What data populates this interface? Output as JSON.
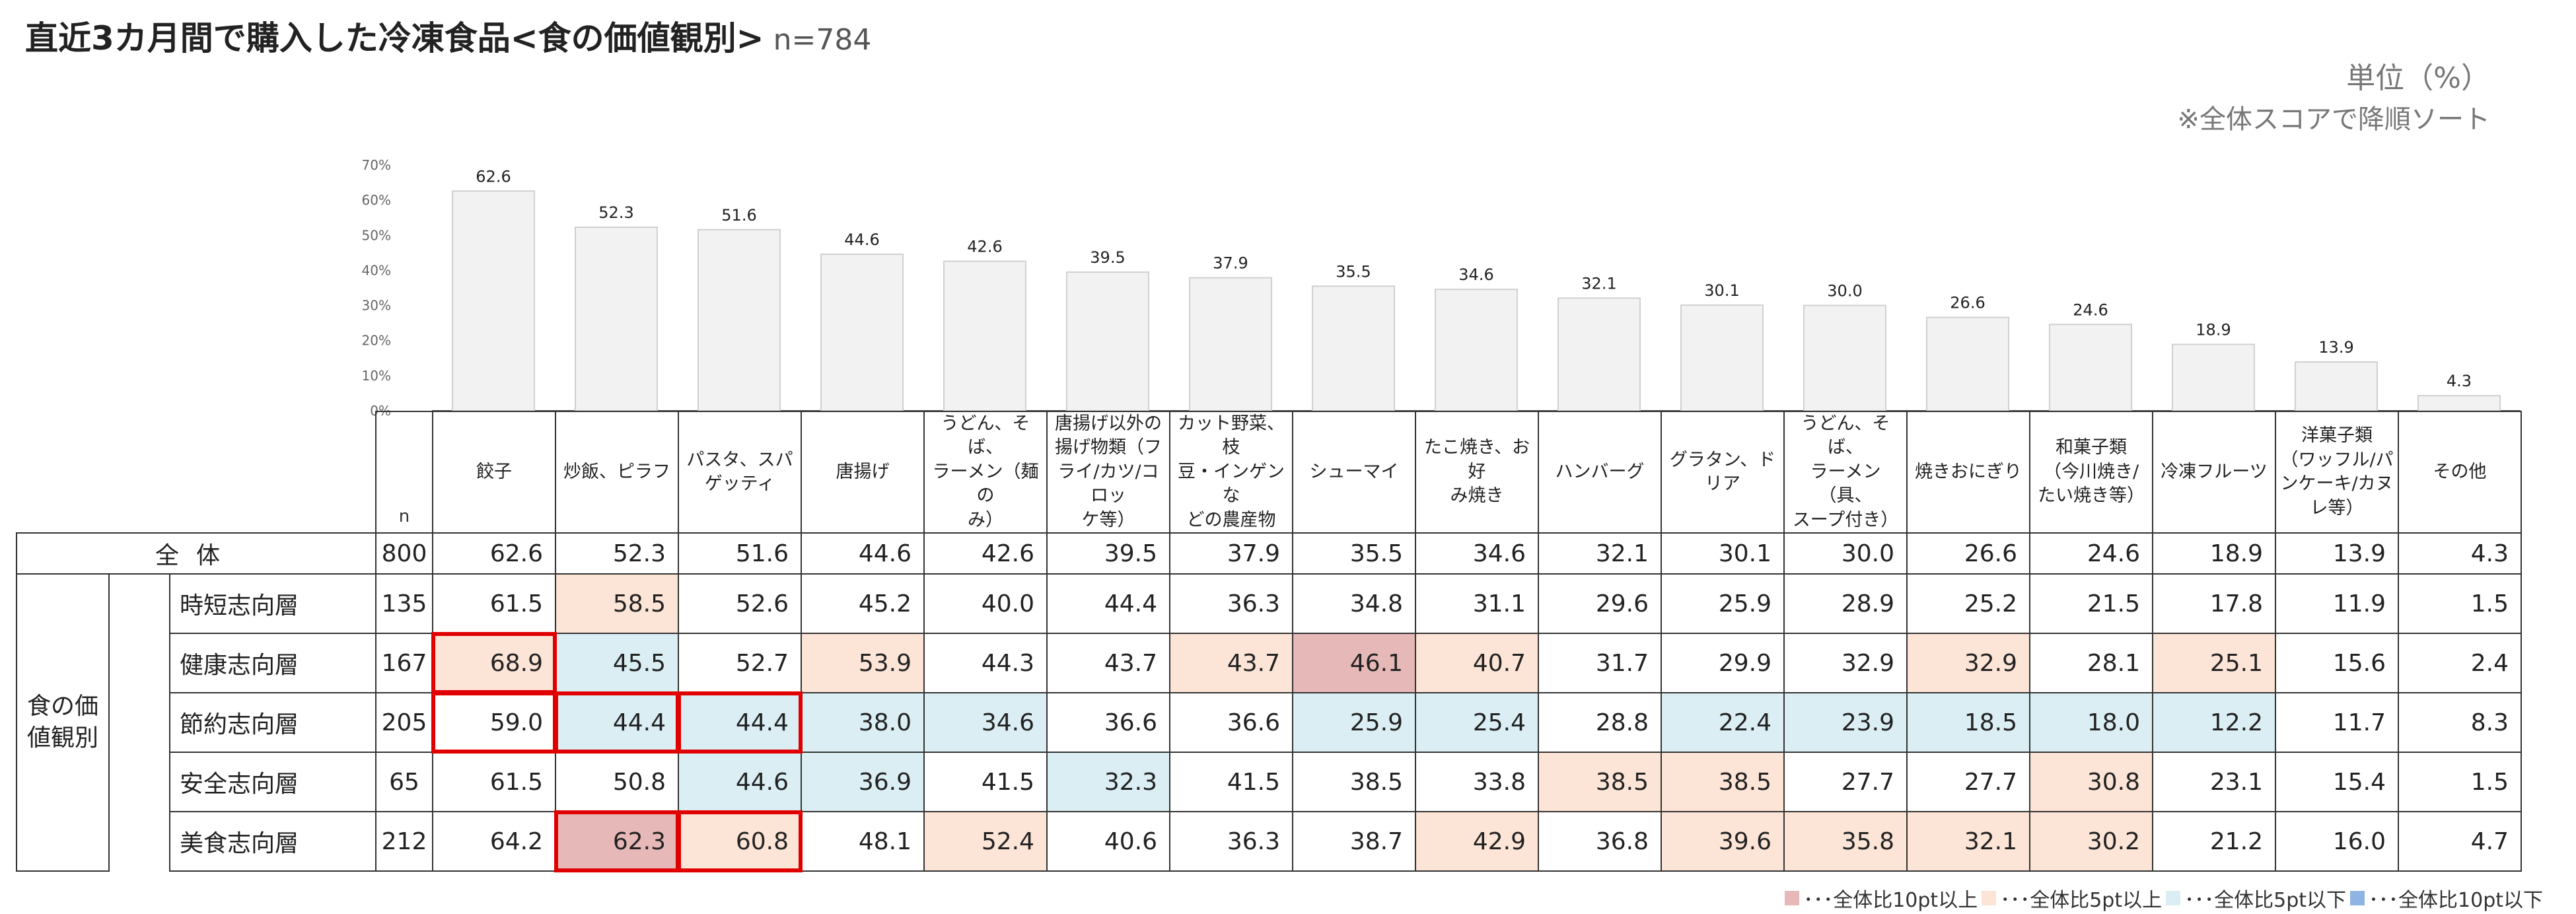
{
  "title": "直近3カ月間で購入した冷凍食品<食の価値観別>",
  "sample": "n=784",
  "unit": "単位（%）",
  "sort_note": "※全体スコアで降順ソート",
  "n_caption": "n",
  "total_label": "全体",
  "group_label": "食の価値観別",
  "categories": [
    "餃子",
    "炒飯、ピラフ",
    "パスタ、スパゲッティ",
    "唐揚げ",
    "うどん、そば、ラーメン（麺のみ）",
    "唐揚げ以外の揚げ物類（フライ/カツ/コロッケ等）",
    "カット野菜、枝豆・インゲンなどの農産物",
    "シューマイ",
    "たこ焼き、お好み焼き",
    "ハンバーグ",
    "グラタン、ドリア",
    "うどん、そば、ラーメン（具、スープ付き）",
    "焼きおにぎり",
    "和菓子類（今川焼き/たい焼き等）",
    "冷凍フルーツ",
    "洋菓子類（ワッフル/パンケーキ/カヌレ等）",
    "その他"
  ],
  "header_lines": [
    [
      "餃子"
    ],
    [
      "炒飯、ピラフ"
    ],
    [
      "パスタ、スパ",
      "ゲッティ"
    ],
    [
      "唐揚げ"
    ],
    [
      "うどん、そば、",
      "ラーメン（麺の",
      "み）"
    ],
    [
      "唐揚げ以外の",
      "揚げ物類（フ",
      "ライ/カツ/コロッ",
      "ケ等）"
    ],
    [
      "カット野菜、枝",
      "豆・インゲンな",
      "どの農産物"
    ],
    [
      "シューマイ"
    ],
    [
      "たこ焼き、お好",
      "み焼き"
    ],
    [
      "ハンバーグ"
    ],
    [
      "グラタン、ドリア"
    ],
    [
      "うどん、そば、",
      "ラーメン（具、",
      "スープ付き）"
    ],
    [
      "焼きおにぎり"
    ],
    [
      "和菓子類",
      "（今川焼き/",
      "たい焼き等）"
    ],
    [
      "冷凍フルーツ"
    ],
    [
      "洋菓子類",
      "（ワッフル/パ",
      "ンケーキ/カヌ",
      "レ等）"
    ],
    [
      "その他"
    ]
  ],
  "total": {
    "n": 800,
    "values": [
      "62.6",
      "52.3",
      "51.6",
      "44.6",
      "42.6",
      "39.5",
      "37.9",
      "35.5",
      "34.6",
      "32.1",
      "30.1",
      "30.0",
      "26.6",
      "24.6",
      "18.9",
      "13.9",
      "4.3"
    ]
  },
  "segments": [
    {
      "label": "時短志向層",
      "n": 135,
      "values": [
        "61.5",
        "58.5",
        "52.6",
        "45.2",
        "40.0",
        "44.4",
        "36.3",
        "34.8",
        "31.1",
        "29.6",
        "25.9",
        "28.9",
        "25.2",
        "21.5",
        "17.8",
        "11.9",
        "1.5"
      ],
      "colors": [
        "",
        "5u",
        "",
        "",
        "",
        "",
        "",
        "",
        "",
        "",
        "",
        "",
        "",
        "",
        "",
        "",
        ""
      ],
      "highlight": []
    },
    {
      "label": "健康志向層",
      "n": 167,
      "values": [
        "68.9",
        "45.5",
        "52.7",
        "53.9",
        "44.3",
        "43.7",
        "43.7",
        "46.1",
        "40.7",
        "31.7",
        "29.9",
        "32.9",
        "32.9",
        "28.1",
        "25.1",
        "15.6",
        "2.4"
      ],
      "colors": [
        "5u",
        "5d",
        "",
        "5u",
        "",
        "",
        "5u",
        "10u",
        "5u",
        "",
        "",
        "",
        "5u",
        "",
        "5u",
        "",
        ""
      ],
      "highlight": [
        0
      ]
    },
    {
      "label": "節約志向層",
      "n": 205,
      "values": [
        "59.0",
        "44.4",
        "44.4",
        "38.0",
        "34.6",
        "36.6",
        "36.6",
        "25.9",
        "25.4",
        "28.8",
        "22.4",
        "23.9",
        "18.5",
        "18.0",
        "12.2",
        "11.7",
        "8.3"
      ],
      "colors": [
        "",
        "5d",
        "5d",
        "5d",
        "5d",
        "",
        "",
        "5d",
        "5d",
        "",
        "5d",
        "5d",
        "5d",
        "5d",
        "5d",
        "",
        ""
      ],
      "highlight": [
        0,
        1,
        2
      ]
    },
    {
      "label": "安全志向層",
      "n": 65,
      "values": [
        "61.5",
        "50.8",
        "44.6",
        "36.9",
        "41.5",
        "32.3",
        "41.5",
        "38.5",
        "33.8",
        "38.5",
        "38.5",
        "27.7",
        "27.7",
        "30.8",
        "23.1",
        "15.4",
        "1.5"
      ],
      "colors": [
        "",
        "",
        "5d",
        "5d",
        "",
        "5d",
        "",
        "",
        "",
        "5u",
        "5u",
        "",
        "",
        "5u",
        "",
        "",
        ""
      ],
      "highlight": []
    },
    {
      "label": "美食志向層",
      "n": 212,
      "values": [
        "64.2",
        "62.3",
        "60.8",
        "48.1",
        "52.4",
        "40.6",
        "36.3",
        "38.7",
        "42.9",
        "36.8",
        "39.6",
        "35.8",
        "32.1",
        "30.2",
        "21.2",
        "16.0",
        "4.7"
      ],
      "colors": [
        "",
        "10u",
        "5u",
        "",
        "5u",
        "",
        "",
        "",
        "5u",
        "",
        "5u",
        "5u",
        "5u",
        "5u",
        "",
        "",
        ""
      ],
      "highlight": [
        1,
        2
      ]
    }
  ],
  "legend": [
    {
      "label": "･･･全体比10pt以上",
      "color": "#e6b8b7"
    },
    {
      "label": "･･･全体比5pt以上",
      "color": "#fce4d6"
    },
    {
      "label": "･･･全体比5pt以下",
      "color": "#daeef3"
    },
    {
      "label": "･･･全体比10pt以下",
      "color": "#8db4e2"
    }
  ],
  "chart_data": {
    "type": "bar",
    "categories": [
      "餃子",
      "炒飯、ピラフ",
      "パスタ、スパゲッティ",
      "唐揚げ",
      "うどん、そば、ラーメン（麺のみ）",
      "唐揚げ以外の揚げ物類（フライ/カツ/コロッケ等）",
      "カット野菜、枝豆・インゲンなどの農産物",
      "シューマイ",
      "たこ焼き、お好み焼き",
      "ハンバーグ",
      "グラタン、ドリア",
      "うどん、そば、ラーメン（具、スープ付き）",
      "焼きおにぎり",
      "和菓子類（今川焼き/たい焼き等）",
      "冷凍フルーツ",
      "洋菓子類（ワッフル/パンケーキ/カヌレ等）",
      "その他"
    ],
    "values": [
      62.6,
      52.3,
      51.6,
      44.6,
      42.6,
      39.5,
      37.9,
      35.5,
      34.6,
      32.1,
      30.1,
      30.0,
      26.6,
      24.6,
      18.9,
      13.9,
      4.3
    ],
    "data_labels": [
      "62.6",
      "52.3",
      "51.6",
      "44.6",
      "42.6",
      "39.5",
      "37.9",
      "35.5",
      "34.6",
      "32.1",
      "30.1",
      "30.0",
      "26.6",
      "24.6",
      "18.9",
      "13.9",
      "4.3"
    ],
    "ylim": [
      0,
      70
    ],
    "yticks": [
      "0%",
      "10%",
      "20%",
      "30%",
      "40%",
      "50%",
      "60%",
      "70%"
    ],
    "grid": false,
    "bar_color": "#f2f2f2",
    "bar_edge": "#d0d0d0"
  }
}
